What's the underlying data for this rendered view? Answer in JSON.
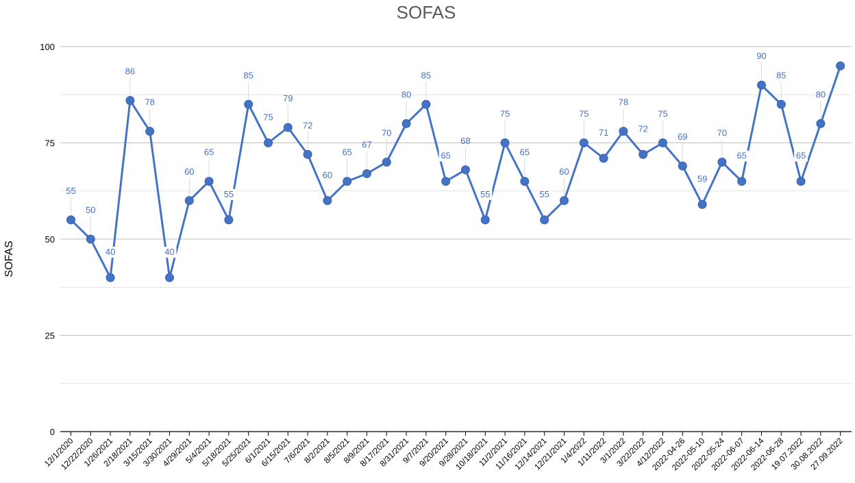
{
  "chart_data": {
    "type": "line",
    "title": "SOFAS",
    "ylabel": "SOFAS",
    "xlabel": "",
    "ylim": [
      0,
      100
    ],
    "yticks": [
      0,
      25,
      50,
      75,
      100
    ],
    "grid": true,
    "line_color": "#4472c4",
    "x": [
      "12/1/2020",
      "12/22/2020",
      "1/26/2021",
      "2/18/2021",
      "3/15/2021",
      "3/30/2021",
      "4/29/2021",
      "5/4/2021",
      "5/18/2021",
      "5/25/2021",
      "6/1/2021",
      "6/15/2021",
      "7/6/2021",
      "8/2/2021",
      "8/5/2021",
      "8/9/2021",
      "8/17/2021",
      "8/31/2021",
      "9/7/2021",
      "9/20/2021",
      "9/28/2021",
      "10/18/2021",
      "11/2/2021",
      "11/16/2021",
      "12/14/2021",
      "12/21/2021",
      "1/4/2022",
      "1/11/2022",
      "3/1/2022",
      "3/22/2022",
      "4/12/2022",
      "2022-04-26",
      "2022-05-10",
      "2022-05-24",
      "2022-06-07",
      "2022-06-14",
      "2022-06-28",
      "19.07.2022",
      "30.08.2022",
      "27.09.2022"
    ],
    "series": [
      {
        "values": [
          55,
          50,
          40,
          86,
          78,
          40,
          60,
          65,
          55,
          85,
          75,
          79,
          72,
          60,
          65,
          67,
          70,
          80,
          85,
          65,
          68,
          55,
          75,
          65,
          55,
          60,
          75,
          71,
          78,
          72,
          75,
          69,
          59,
          70,
          65,
          90,
          85,
          65,
          80,
          95
        ],
        "labels": [
          "55",
          "50",
          "40",
          "86",
          "78",
          "40",
          "60",
          "65",
          "55",
          "85",
          "75",
          "79",
          "72",
          "60",
          "65",
          "67",
          "70",
          "80",
          "85",
          "65",
          "68",
          "55",
          "75",
          "65",
          "55",
          "60",
          "75",
          "71",
          "78",
          "72",
          "75",
          "69",
          "59",
          "70",
          "65",
          "90",
          "85",
          "65",
          "80",
          ""
        ]
      }
    ]
  }
}
